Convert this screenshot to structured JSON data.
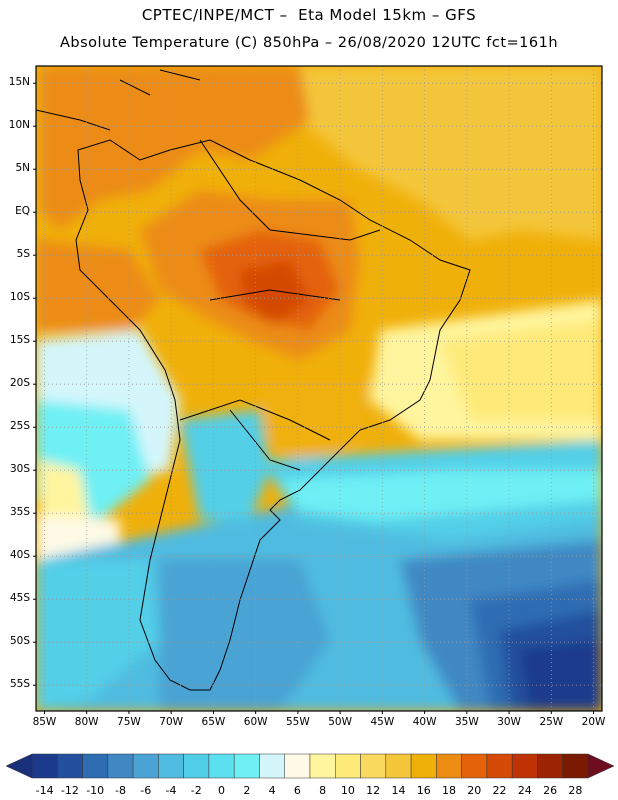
{
  "header": {
    "line1": "CPTEC/INPE/MCT –  Eta Model 15km – GFS",
    "line2": "Absolute Temperature (C) 850hPa – 26/08/2020 12UTC fct=161h"
  },
  "map": {
    "lat_labels": [
      "15N",
      "10N",
      "5N",
      "EQ",
      "5S",
      "10S",
      "15S",
      "20S",
      "25S",
      "30S",
      "35S",
      "40S",
      "45S",
      "50S",
      "55S"
    ],
    "lon_labels": [
      "85W",
      "80W",
      "75W",
      "70W",
      "65W",
      "60W",
      "55W",
      "50W",
      "45W",
      "40W",
      "35W",
      "30W",
      "25W",
      "20W"
    ],
    "lat_range": [
      17,
      -58
    ],
    "lon_range": [
      -86,
      -19
    ],
    "grid": "dotted"
  },
  "colorbar": {
    "labels": [
      "-14",
      "-12",
      "-10",
      "-8",
      "-6",
      "-4",
      "-2",
      "0",
      "2",
      "4",
      "6",
      "8",
      "10",
      "12",
      "14",
      "16",
      "18",
      "20",
      "22",
      "24",
      "26",
      "28"
    ],
    "colors": [
      "#1b3a8c",
      "#22509e",
      "#2f6db3",
      "#3f88c4",
      "#4aa3d4",
      "#4fbbe0",
      "#52cfe8",
      "#5be0ef",
      "#6ef0f5",
      "#d4f6fb",
      "#fffae6",
      "#fff59e",
      "#feea79",
      "#f9da5f",
      "#f4c63a",
      "#f0b00a",
      "#ec8c12",
      "#e4620a",
      "#d44a06",
      "#bf3204",
      "#9c2404",
      "#7a1a02"
    ],
    "left_arrow_color": "#1a2f7a",
    "right_arrow_color": "#6e0d1e"
  }
}
